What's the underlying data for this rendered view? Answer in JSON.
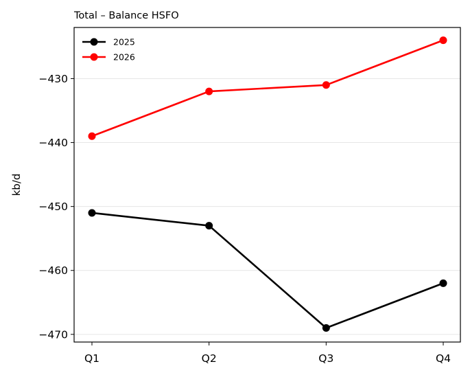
{
  "chart_data": {
    "type": "line",
    "title": "Total – Balance HSFO",
    "xlabel": "",
    "ylabel": "kb/d",
    "categories": [
      "Q1",
      "Q2",
      "Q3",
      "Q4"
    ],
    "yticks": [
      -430,
      -440,
      -450,
      -460,
      -470
    ],
    "ytick_labels": [
      "−430",
      "−440",
      "−450",
      "−460",
      "−470"
    ],
    "ylim": [
      -471.2,
      -422
    ],
    "grid": "horizontal",
    "legend_position": "top-left",
    "series": [
      {
        "name": "2025",
        "color": "#000000",
        "values": [
          -451,
          -453,
          -469,
          -462
        ]
      },
      {
        "name": "2026",
        "color": "#ff0000",
        "values": [
          -439,
          -432,
          -431,
          -424
        ]
      }
    ]
  }
}
